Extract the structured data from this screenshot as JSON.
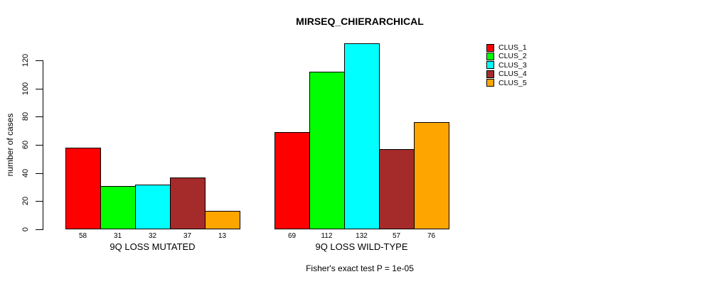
{
  "chart_data": {
    "type": "bar",
    "title": "MIRSEQ_CHIERARCHICAL",
    "subtitle": "Fisher's exact test P = 1e-05",
    "ylabel": "number of cases",
    "xlabel": "",
    "yticks": [
      0,
      20,
      40,
      60,
      80,
      100,
      120
    ],
    "ylim": [
      0,
      135
    ],
    "grid": false,
    "legend_position": "right",
    "bar_value_labels": true,
    "categories": [
      "9Q LOSS MUTATED",
      "9Q LOSS WILD-TYPE"
    ],
    "series": [
      {
        "name": "CLUS_1",
        "color": "#FF0000",
        "values": [
          58,
          69
        ]
      },
      {
        "name": "CLUS_2",
        "color": "#00FF00",
        "values": [
          31,
          112
        ]
      },
      {
        "name": "CLUS_3",
        "color": "#00FFFF",
        "values": [
          32,
          132
        ]
      },
      {
        "name": "CLUS_4",
        "color": "#A52A2A",
        "values": [
          37,
          57
        ]
      },
      {
        "name": "CLUS_5",
        "color": "#FFA500",
        "values": [
          13,
          76
        ]
      }
    ]
  }
}
